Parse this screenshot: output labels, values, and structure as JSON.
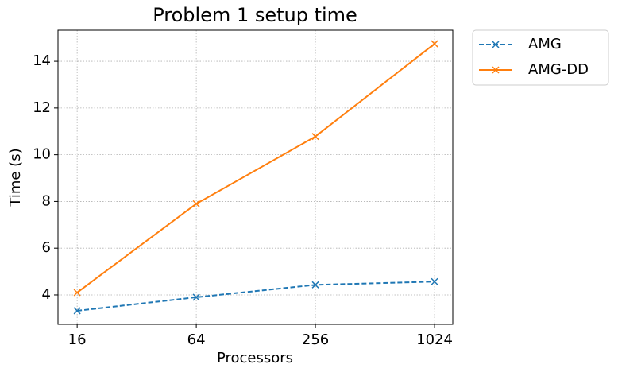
{
  "chart_data": {
    "type": "line",
    "title": "Problem 1 setup time",
    "x_label": "Processors",
    "y_label": "Time (s)",
    "x": [
      16,
      64,
      256,
      1024
    ],
    "xscale": "log2",
    "xlim": [
      12.8,
      1266
    ],
    "xticks": [
      16,
      64,
      256,
      1024
    ],
    "ylim": [
      2.74,
      15.33
    ],
    "yticks": [
      4,
      6,
      8,
      10,
      12,
      14
    ],
    "grid": true,
    "legend": "outside upper right",
    "series": [
      {
        "name": "AMG",
        "color": "#1f77b4",
        "linestyle": "dashed",
        "marker": "x",
        "values": [
          3.32,
          3.9,
          4.43,
          4.57
        ]
      },
      {
        "name": "AMG-DD",
        "color": "#ff7f0e",
        "linestyle": "solid",
        "marker": "x",
        "values": [
          4.1,
          7.9,
          10.78,
          14.75
        ]
      }
    ]
  }
}
